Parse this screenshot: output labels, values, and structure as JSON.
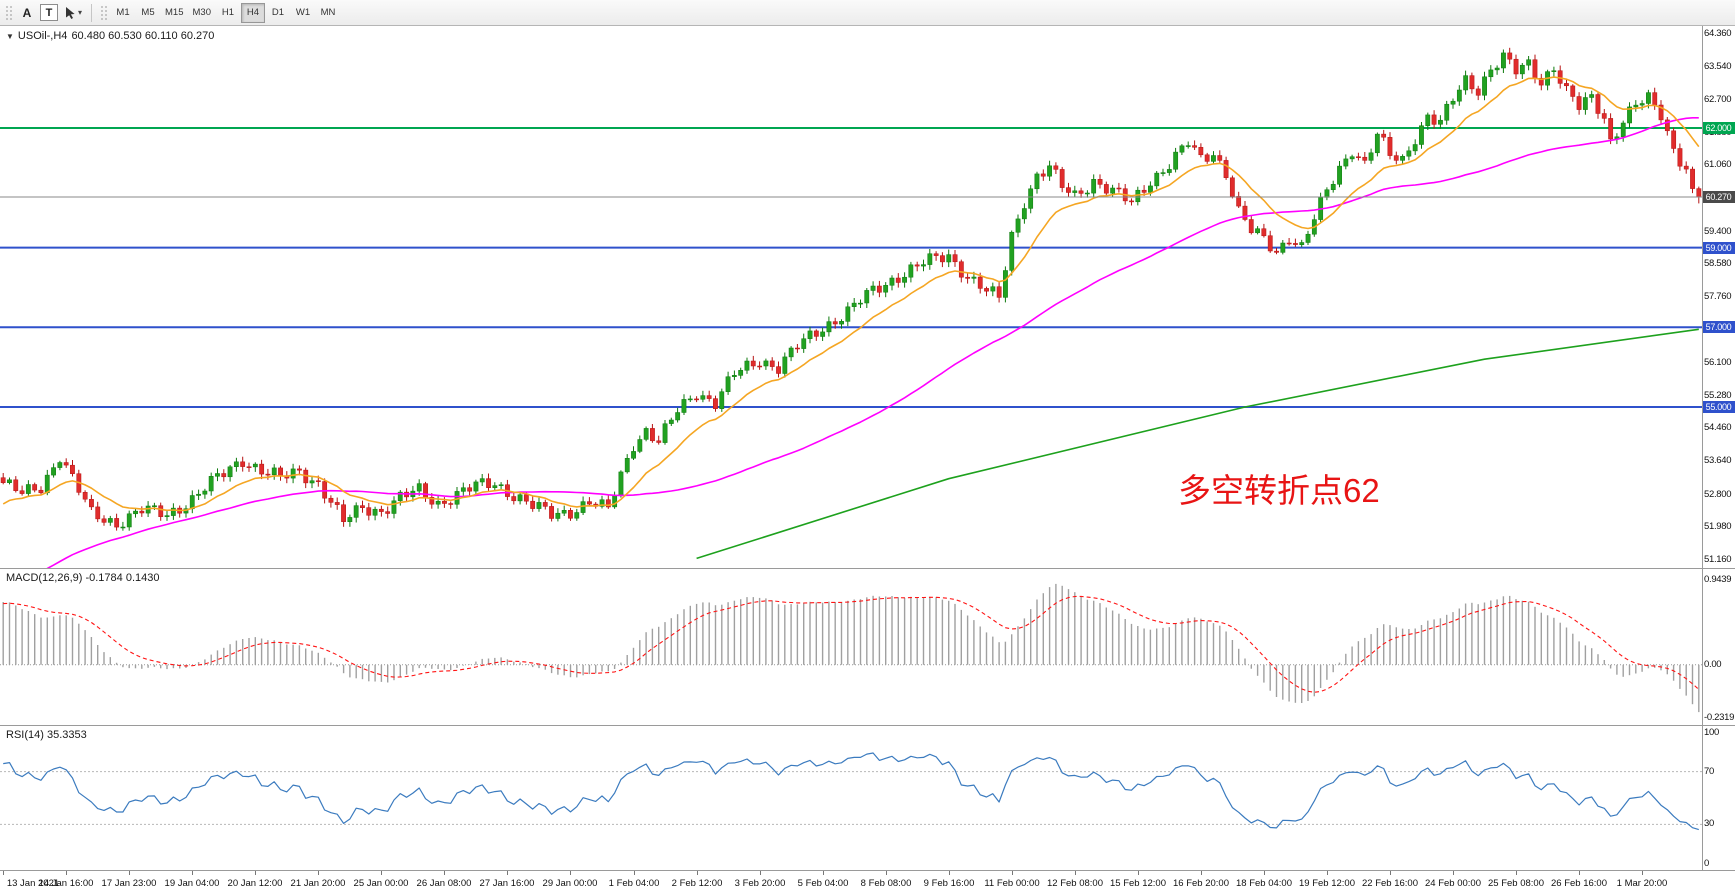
{
  "toolbar": {
    "tools": [
      {
        "label": "A",
        "name": "arrow-text-tool"
      },
      {
        "label": "T",
        "name": "text-label-tool"
      },
      {
        "label": "cursor",
        "name": "cursor-tool"
      }
    ],
    "timeframes": [
      "M1",
      "M5",
      "M15",
      "M30",
      "H1",
      "H4",
      "D1",
      "W1",
      "MN"
    ],
    "active_timeframe": "H4"
  },
  "chart": {
    "symbol_label": "USOil-,H4",
    "ohlc": "60.480 60.530 60.110 60.270",
    "annotation": {
      "text": "多空转折点62",
      "color": "#e81414"
    },
    "price_axis_labels": [
      "64.360",
      "63.540",
      "62.700",
      "61.880",
      "61.060",
      "60.240",
      "59.400",
      "58.580",
      "57.760",
      "56.940",
      "56.100",
      "55.280",
      "54.460",
      "53.640",
      "52.800",
      "51.980",
      "51.160"
    ],
    "price_badges": [
      {
        "text": "62.000",
        "value": 62.0,
        "bg": "#00a651"
      },
      {
        "text": "60.270",
        "value": 60.27,
        "bg": "#4a4a4a"
      },
      {
        "text": "59.000",
        "value": 59.0,
        "bg": "#2f51cc"
      },
      {
        "text": "57.000",
        "value": 57.0,
        "bg": "#2f51cc"
      },
      {
        "text": "55.000",
        "value": 55.0,
        "bg": "#2f51cc"
      }
    ]
  },
  "macd": {
    "label": "MACD(12,26,9) -0.1784 0.1430",
    "axis_labels": {
      "top": "0.9439",
      "zero": "0.00",
      "bottom": "-0.2319"
    }
  },
  "rsi": {
    "label": "RSI(14) 35.3353",
    "axis_labels": [
      "100",
      "70",
      "30",
      "0"
    ]
  },
  "time_axis": {
    "candles_per_label": 10,
    "labels": [
      "13 Jan 2021",
      "14 Jan 16:00",
      "17 Jan 23:00",
      "19 Jan 04:00",
      "20 Jan 12:00",
      "21 Jan 20:00",
      "25 Jan 00:00",
      "26 Jan 08:00",
      "27 Jan 16:00",
      "29 Jan 00:00",
      "1 Feb 04:00",
      "2 Feb 12:00",
      "3 Feb 20:00",
      "5 Feb 04:00",
      "8 Feb 08:00",
      "9 Feb 16:00",
      "11 Feb 00:00",
      "12 Feb 08:00",
      "15 Feb 12:00",
      "16 Feb 20:00",
      "18 Feb 04:00",
      "19 Feb 12:00",
      "22 Feb 16:00",
      "24 Feb 00:00",
      "25 Feb 08:00",
      "26 Feb 16:00",
      "1 Mar 20:00"
    ]
  },
  "chart_data": {
    "type": "candlestick",
    "title": "USOil H4 candlestick chart with MACD(12,26,9) and RSI(14)",
    "candle_count": 270,
    "y_range": [
      51.16,
      64.36
    ],
    "close_anchors": [
      [
        0,
        53.1
      ],
      [
        3,
        52.8
      ],
      [
        6,
        53.0
      ],
      [
        9,
        53.8
      ],
      [
        11,
        53.2
      ],
      [
        14,
        52.3
      ],
      [
        18,
        52.1
      ],
      [
        22,
        52.4
      ],
      [
        26,
        52.3
      ],
      [
        30,
        52.7
      ],
      [
        34,
        53.2
      ],
      [
        38,
        53.7
      ],
      [
        41,
        53.4
      ],
      [
        44,
        53.2
      ],
      [
        47,
        53.4
      ],
      [
        50,
        53.1
      ],
      [
        52,
        52.6
      ],
      [
        54,
        52.1
      ],
      [
        57,
        52.5
      ],
      [
        60,
        52.4
      ],
      [
        63,
        52.7
      ],
      [
        66,
        52.9
      ],
      [
        69,
        52.6
      ],
      [
        72,
        52.8
      ],
      [
        75,
        53.0
      ],
      [
        78,
        53.1
      ],
      [
        81,
        52.8
      ],
      [
        84,
        52.5
      ],
      [
        87,
        52.3
      ],
      [
        90,
        52.4
      ],
      [
        93,
        52.6
      ],
      [
        96,
        52.4
      ],
      [
        98,
        53.3
      ],
      [
        100,
        54.1
      ],
      [
        102,
        54.4
      ],
      [
        104,
        54.1
      ],
      [
        107,
        54.9
      ],
      [
        110,
        55.4
      ],
      [
        113,
        55.1
      ],
      [
        116,
        55.8
      ],
      [
        120,
        56.2
      ],
      [
        123,
        56.0
      ],
      [
        126,
        56.5
      ],
      [
        130,
        57.0
      ],
      [
        134,
        57.4
      ],
      [
        138,
        57.9
      ],
      [
        142,
        58.3
      ],
      [
        146,
        58.6
      ],
      [
        150,
        58.8
      ],
      [
        153,
        58.3
      ],
      [
        156,
        57.9
      ],
      [
        158,
        57.7
      ],
      [
        160,
        59.3
      ],
      [
        162,
        60.2
      ],
      [
        164,
        60.8
      ],
      [
        166,
        61.0
      ],
      [
        168,
        60.5
      ],
      [
        170,
        60.3
      ],
      [
        173,
        60.7
      ],
      [
        176,
        60.4
      ],
      [
        179,
        60.1
      ],
      [
        182,
        60.7
      ],
      [
        185,
        61.1
      ],
      [
        188,
        61.6
      ],
      [
        190,
        61.2
      ],
      [
        192,
        61.4
      ],
      [
        194,
        60.9
      ],
      [
        196,
        59.9
      ],
      [
        198,
        59.4
      ],
      [
        200,
        59.2
      ],
      [
        202,
        58.9
      ],
      [
        204,
        59.3
      ],
      [
        206,
        59.0
      ],
      [
        208,
        59.7
      ],
      [
        210,
        60.4
      ],
      [
        212,
        61.0
      ],
      [
        214,
        61.5
      ],
      [
        216,
        61.1
      ],
      [
        218,
        61.8
      ],
      [
        220,
        61.3
      ],
      [
        222,
        61.2
      ],
      [
        224,
        61.8
      ],
      [
        226,
        62.3
      ],
      [
        228,
        62.1
      ],
      [
        230,
        62.7
      ],
      [
        232,
        63.2
      ],
      [
        234,
        63.0
      ],
      [
        236,
        63.5
      ],
      [
        238,
        63.75
      ],
      [
        240,
        63.4
      ],
      [
        242,
        63.6
      ],
      [
        244,
        63.2
      ],
      [
        246,
        63.55
      ],
      [
        248,
        62.9
      ],
      [
        250,
        62.5
      ],
      [
        252,
        62.75
      ],
      [
        254,
        62.3
      ],
      [
        255,
        61.7
      ],
      [
        257,
        62.2
      ],
      [
        259,
        62.55
      ],
      [
        261,
        62.7
      ],
      [
        263,
        62.35
      ],
      [
        265,
        61.5
      ],
      [
        267,
        61.0
      ],
      [
        268,
        60.55
      ],
      [
        269,
        60.27
      ]
    ],
    "wiggle": {
      "a1": 0.13,
      "f1": 1.93,
      "a2": 0.09,
      "f2": 0.61
    },
    "wick": {
      "base": 0.04,
      "amp": 0.09
    },
    "preroll": {
      "bars": 60,
      "start_price": 47.5
    },
    "last_candle": {
      "o": 60.48,
      "h": 60.53,
      "l": 60.11,
      "c": 60.27
    },
    "candle_colors": {
      "up_fill": "#21a121",
      "up_stroke": "#0d7a0d",
      "down_fill": "#e02c2c",
      "down_stroke": "#b51212"
    },
    "indicators": {
      "ma_fast": {
        "type": "ema",
        "period": 13,
        "color": "#f5a623"
      },
      "ma_mid": {
        "type": "sma",
        "period": 60,
        "color": "#ff00ff"
      },
      "ma_slow_path": {
        "color": "#1da11d",
        "points": [
          [
            110,
            51.2
          ],
          [
            150,
            53.2
          ],
          [
            197,
            55.0
          ],
          [
            235,
            56.2
          ],
          [
            269,
            56.95
          ]
        ]
      },
      "macd": {
        "fast": 12,
        "slow": 26,
        "signal": 9,
        "hist_color": "#a0a0a0",
        "signal_color": "#ff1414",
        "last_main": -0.1784,
        "last_signal": 0.143
      },
      "rsi": {
        "period": 14,
        "color": "#3b7bbf",
        "levels": [
          70,
          30
        ],
        "last_value": 35.3353
      }
    },
    "hlines": [
      {
        "value": 62.0,
        "color": "#00a651",
        "width": 2
      },
      {
        "value": 59.0,
        "color": "#2f51cc",
        "width": 2
      },
      {
        "value": 57.0,
        "color": "#2f51cc",
        "width": 2
      },
      {
        "value": 55.0,
        "color": "#2f51cc",
        "width": 2
      }
    ],
    "price_line": {
      "value": 60.27,
      "color": "#8a8a8a",
      "width": 1
    }
  }
}
